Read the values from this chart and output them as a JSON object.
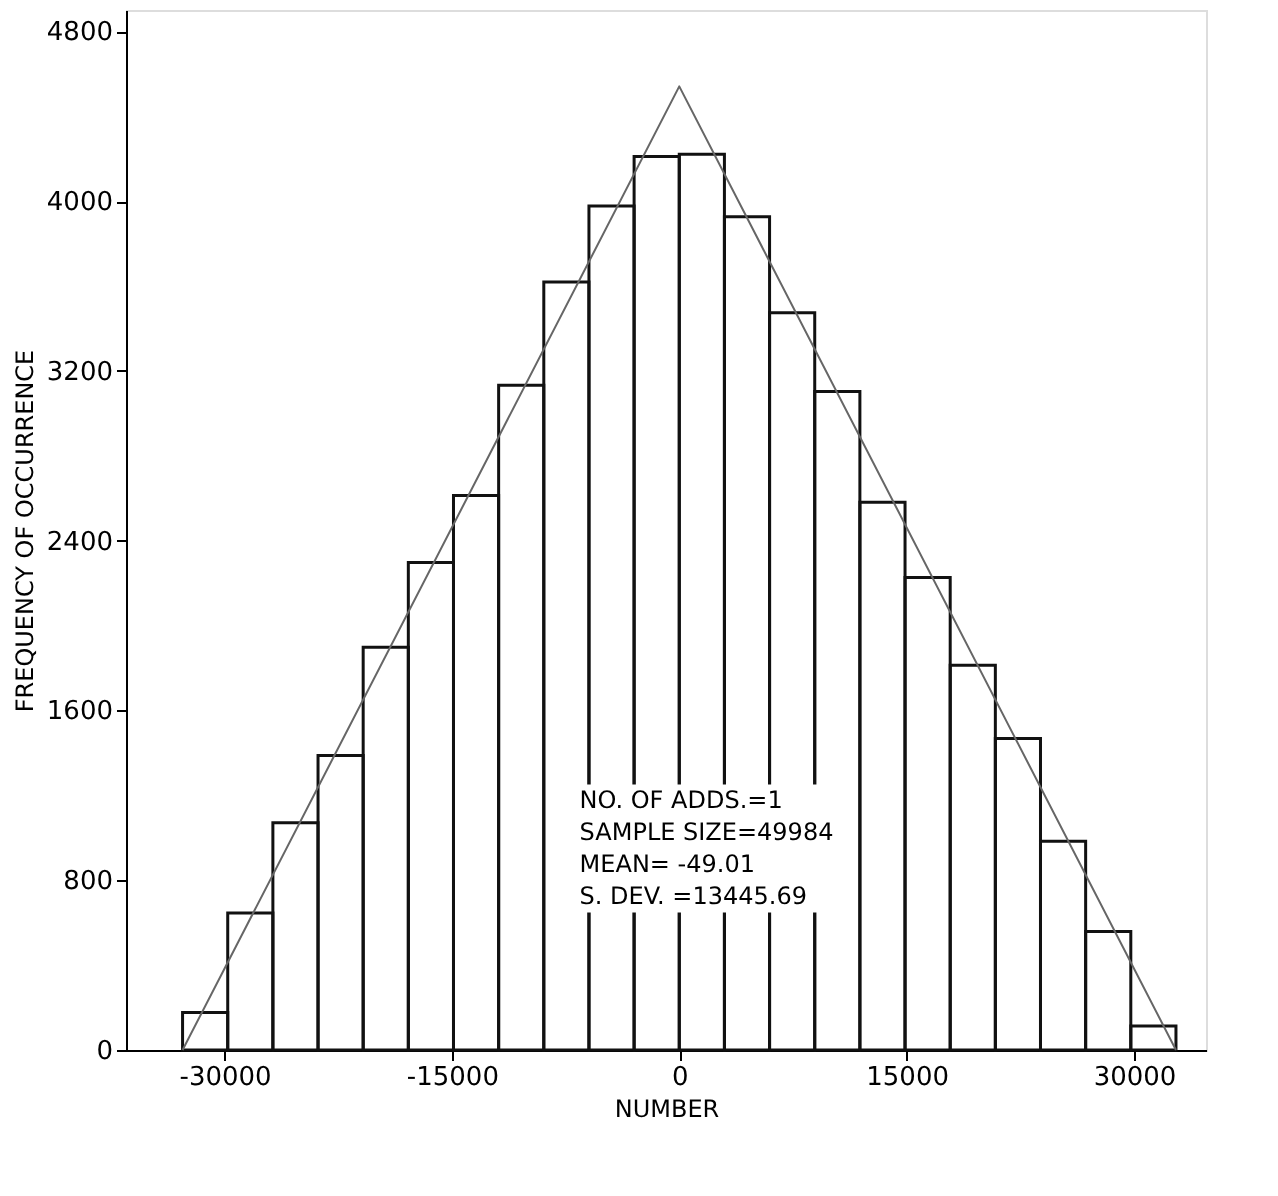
{
  "chart_data": {
    "type": "histogram",
    "xlabel": "NUMBER",
    "ylabel": "FREQUENCY OF OCCURRENCE",
    "bins": [
      -32768,
      -29789,
      -26810,
      -23831,
      -20853,
      -17874,
      -14895,
      -11916,
      -8937,
      -5958,
      -2979,
      0,
      2979,
      5958,
      8937,
      11916,
      14895,
      17874,
      20853,
      23831,
      26810,
      29789,
      32768
    ],
    "values": [
      177,
      645,
      1071,
      1387,
      1897,
      2297,
      2613,
      3132,
      3619,
      3977,
      4210,
      4220,
      3926,
      3474,
      3103,
      2581,
      2226,
      1813,
      1468,
      984,
      558,
      113
    ],
    "color": "#111111",
    "series": [
      {
        "type": "line",
        "color": "#666666",
        "x": [
          -32768,
          0,
          32768
        ],
        "values": [
          0,
          4540,
          0
        ]
      }
    ],
    "xlim": [
      -36500,
      34750
    ],
    "ylim": [
      0,
      4900
    ],
    "xticks": [
      -30000,
      -15000,
      0,
      15000,
      30000
    ],
    "yticks": [
      0,
      800,
      1600,
      2400,
      3200,
      4000,
      4800
    ],
    "grid": false,
    "annotations": [
      "NO. OF ADDS.=1",
      "SAMPLE SIZE=49984",
      "MEAN= -49.01",
      "S. DEV. =13445.69"
    ]
  }
}
